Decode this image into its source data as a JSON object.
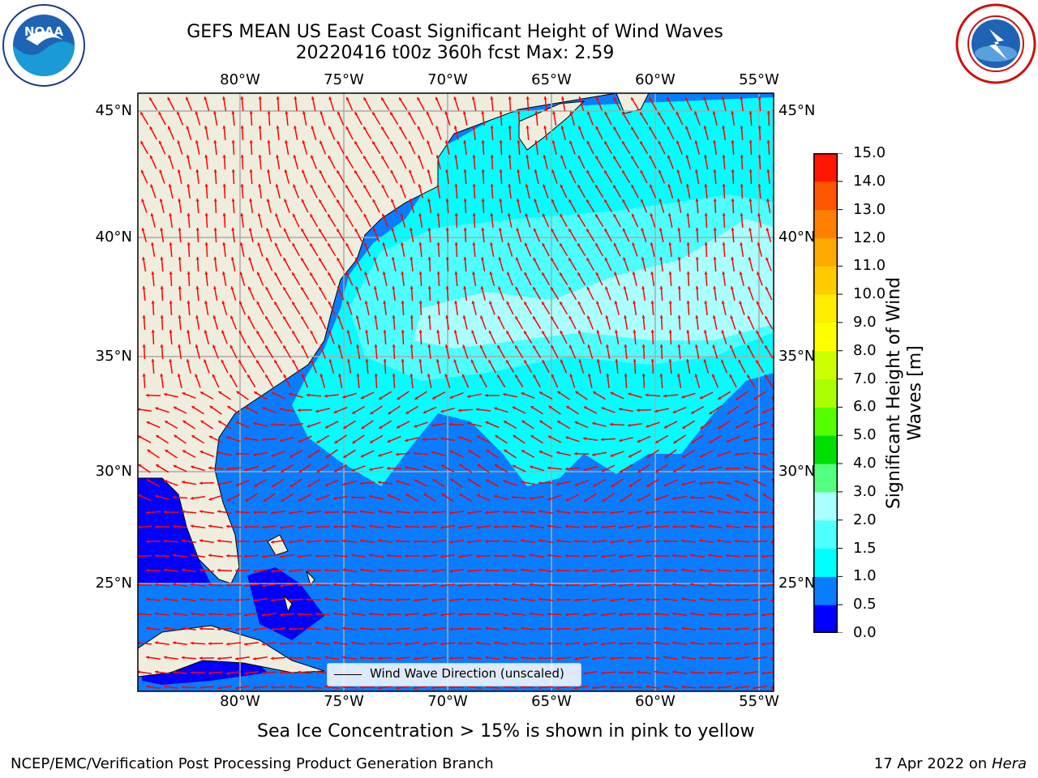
{
  "title": {
    "line1": "GEFS MEAN US East Coast Significant Height of Wind Waves",
    "line2": "20220416 t00z 360h fcst   Max: 2.59"
  },
  "logos": {
    "noaa_text": "NOAA",
    "noaa_ring": "NATIONAL OCEANIC AND ATMOSPHERIC ADMINISTRATION · U.S. DEPARTMENT OF COMMERCE",
    "nws_ring": "NATIONAL WEATHER SERVICE"
  },
  "map": {
    "lon_labels": [
      "80°W",
      "75°W",
      "70°W",
      "65°W",
      "60°W",
      "55°W"
    ],
    "lat_labels": [
      "45°N",
      "40°N",
      "35°N",
      "30°N",
      "25°N"
    ],
    "extent": {
      "lon": [
        -85,
        -54.3
      ],
      "lat": [
        20.3,
        46
      ]
    },
    "vector_color": "#ff0000",
    "land_color": "#efedde",
    "legend": "Wind Wave Direction (unscaled)"
  },
  "colorbar": {
    "label_line1": "Significant Height of Wind",
    "label_line2": "Waves [m]",
    "ticks": [
      "0.0",
      "0.5",
      "1.0",
      "1.5",
      "2.0",
      "3.0",
      "4.0",
      "5.0",
      "6.0",
      "7.0",
      "8.0",
      "9.0",
      "10.0",
      "11.0",
      "12.0",
      "13.0",
      "14.0",
      "15.0"
    ],
    "colors": [
      "#0000ff",
      "#0a7cff",
      "#00ffff",
      "#4dffff",
      "#aaffff",
      "#55ff80",
      "#00e000",
      "#55ff00",
      "#aaff00",
      "#ccff00",
      "#ffff00",
      "#ffee00",
      "#ffcc00",
      "#ffaa00",
      "#ff8000",
      "#ff5500",
      "#ff1500"
    ]
  },
  "notes": {
    "ice": "Sea Ice Concentration > 15% is shown in pink to yellow",
    "footer_left": "NCEP/EMC/Verification Post Processing Product Generation Branch",
    "footer_date": "17 Apr 2022 on ",
    "footer_host": "Hera"
  }
}
